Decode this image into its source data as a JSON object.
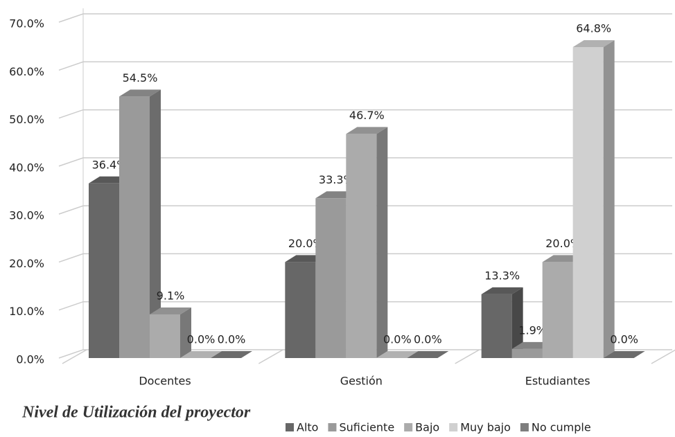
{
  "chart_data": {
    "type": "bar3d",
    "title": "Nivel de Utilización del proyector",
    "categories": [
      "Docentes",
      "Gestión",
      "Estudiantes"
    ],
    "series": [
      {
        "name": "Alto",
        "color": "#676767",
        "values": [
          36.4,
          20.0,
          13.3
        ],
        "value_labels": [
          "36.4%",
          "20.0%",
          "13.3%"
        ]
      },
      {
        "name": "Suficiente",
        "color": "#9a9a9a",
        "values": [
          54.5,
          33.3,
          1.9
        ],
        "value_labels": [
          "54.5%",
          "33.3%",
          "1.9%"
        ]
      },
      {
        "name": "Bajo",
        "color": "#ababab",
        "values": [
          9.1,
          46.7,
          20.0
        ],
        "value_labels": [
          "9.1%",
          "46.7%",
          "20.0%"
        ]
      },
      {
        "name": "Muy bajo",
        "color": "#d0d0d0",
        "values": [
          0.0,
          0.0,
          64.8
        ],
        "value_labels": [
          "0.0%",
          "0.0%",
          "64.8%"
        ]
      },
      {
        "name": "No cumple",
        "color": "#7e7e7e",
        "values": [
          0.0,
          0.0,
          0.0
        ],
        "value_labels": [
          "0.0%",
          "0.0%",
          "0.0%"
        ]
      }
    ],
    "ylim": [
      0,
      70
    ],
    "yticks": [
      {
        "value": 0,
        "label": "0.0%"
      },
      {
        "value": 10,
        "label": "10.0%"
      },
      {
        "value": 20,
        "label": "20.0%"
      },
      {
        "value": 30,
        "label": "30.0%"
      },
      {
        "value": 40,
        "label": "40.0%"
      },
      {
        "value": 50,
        "label": "50.0%"
      },
      {
        "value": 60,
        "label": "60.0%"
      },
      {
        "value": 70,
        "label": "70.0%"
      }
    ],
    "grid": true,
    "legend": "bottom-right"
  }
}
